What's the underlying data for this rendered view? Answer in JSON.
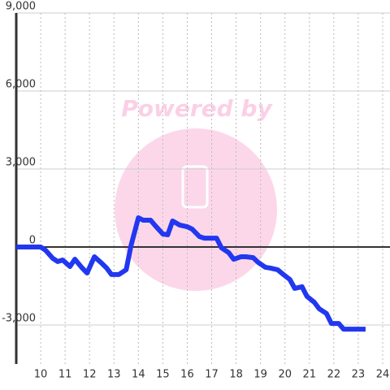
{
  "chart_data": {
    "type": "line",
    "watermark": "Powered by",
    "x": [
      9.0,
      10.0,
      10.2,
      10.5,
      10.7,
      10.9,
      11.2,
      11.4,
      11.7,
      11.9,
      12.2,
      12.5,
      12.7,
      12.9,
      13.2,
      13.5,
      13.7,
      14.0,
      14.2,
      14.5,
      14.7,
      15.0,
      15.2,
      15.4,
      15.7,
      16.0,
      16.2,
      16.5,
      16.7,
      16.9,
      17.2,
      17.4,
      17.7,
      17.9,
      18.2,
      18.4,
      18.7,
      18.9,
      19.2,
      19.4,
      19.7,
      19.9,
      20.2,
      20.4,
      20.7,
      20.9,
      21.2,
      21.4,
      21.7,
      21.9,
      22.2,
      22.4,
      23.3
    ],
    "values": [
      0,
      0,
      -125,
      -440,
      -560,
      -500,
      -750,
      -470,
      -810,
      -1000,
      -375,
      -625,
      -810,
      -1060,
      -1060,
      -875,
      60,
      1125,
      1030,
      1030,
      810,
      500,
      470,
      1000,
      840,
      780,
      690,
      400,
      340,
      340,
      340,
      -30,
      -220,
      -470,
      -375,
      -375,
      -410,
      -590,
      -780,
      -810,
      -875,
      -1030,
      -1250,
      -1590,
      -1530,
      -1900,
      -2125,
      -2375,
      -2560,
      -2940,
      -2940,
      -3160,
      -3160
    ],
    "color": "#2237f0",
    "xlim": [
      9,
      24.3
    ],
    "xticks": [
      10,
      11,
      12,
      13,
      14,
      15,
      16,
      17,
      18,
      19,
      20,
      21,
      22,
      23,
      24
    ],
    "ylim": [
      -4500,
      9000
    ],
    "yticks": [
      {
        "value": 9000,
        "label": "9,000"
      },
      {
        "value": 6000,
        "label": "6,000"
      },
      {
        "value": 3000,
        "label": "3,000"
      },
      0,
      {
        "value": -3000,
        "label": "-3,000"
      }
    ],
    "grid": true
  }
}
